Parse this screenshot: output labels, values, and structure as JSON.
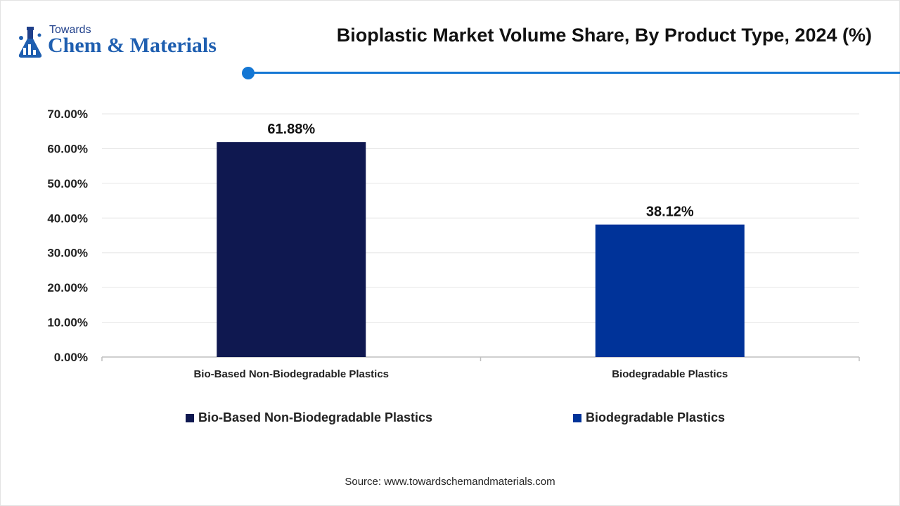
{
  "logo": {
    "top_text": "Towards",
    "main_text": "Chem & Materials"
  },
  "source": "Source: www.towardschemandmaterials.com",
  "colors": {
    "accent": "#1477d4",
    "series_1": "#0f1850",
    "series_2": "#003399"
  },
  "chart_data": {
    "type": "bar",
    "title": "Bioplastic Market Volume Share, By Product Type, 2024 (%)",
    "categories": [
      "Bio-Based Non-Biodegradable Plastics",
      "Biodegradable Plastics"
    ],
    "values": [
      61.88,
      38.12
    ],
    "data_labels": [
      "61.88%",
      "38.12%"
    ],
    "ylim": [
      0,
      70
    ],
    "yticks": [
      0,
      10,
      20,
      30,
      40,
      50,
      60,
      70
    ],
    "ytick_labels": [
      "0.00%",
      "10.00%",
      "20.00%",
      "30.00%",
      "40.00%",
      "50.00%",
      "60.00%",
      "70.00%"
    ],
    "grid": true,
    "legend": {
      "placement": "bottom",
      "entries": [
        "Bio-Based Non-Biodegradable Plastics",
        "Biodegradable Plastics"
      ]
    }
  }
}
